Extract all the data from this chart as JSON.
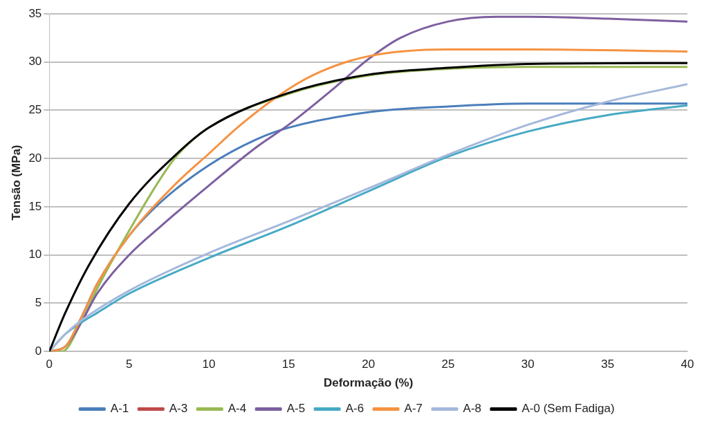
{
  "chart_data": {
    "type": "line",
    "xlabel": "Deformação (%)",
    "ylabel": "Tensão (MPa)",
    "xlim": [
      0,
      40
    ],
    "xticks": [
      0,
      5,
      10,
      15,
      20,
      25,
      30,
      35,
      40
    ],
    "ylim": [
      0,
      35
    ],
    "yticks": [
      0,
      5,
      10,
      15,
      20,
      25,
      30,
      35
    ],
    "grid": "y",
    "legend": "bottom",
    "marker": "none",
    "line_style": "solid",
    "series": [
      {
        "name": "A-1",
        "color": "#4a7ebb",
        "x": [
          0,
          1,
          2,
          3,
          5,
          7,
          10,
          13,
          15,
          20,
          25,
          30,
          40
        ],
        "values": [
          0,
          0.5,
          3.5,
          7,
          12,
          15.5,
          19.3,
          22,
          23.2,
          24.8,
          25.4,
          25.7,
          25.7
        ]
      },
      {
        "name": "A-3",
        "color": "#be4b48"
      },
      {
        "name": "A-4",
        "color": "#98b954",
        "x": [
          0,
          0.8,
          2,
          3,
          5,
          7,
          8,
          10,
          15,
          20,
          25,
          30,
          40
        ],
        "values": [
          0,
          0,
          3,
          6.5,
          12.5,
          18,
          20.3,
          23.2,
          26.7,
          28.6,
          29.3,
          29.5,
          29.5
        ]
      },
      {
        "name": "A-5",
        "color": "#7d5fa0",
        "x": [
          0,
          1,
          2,
          3,
          5,
          7,
          10,
          13,
          15,
          18,
          20,
          22,
          25,
          28,
          30,
          35,
          40
        ],
        "values": [
          0,
          0.5,
          3,
          6,
          10,
          13,
          17.2,
          21.2,
          23.5,
          27.5,
          30.3,
          32.5,
          34.2,
          34.7,
          34.7,
          34.5,
          34.2
        ]
      },
      {
        "name": "A-6",
        "color": "#46aac5",
        "x": [
          0,
          1,
          2,
          3,
          5,
          10,
          15,
          20,
          25,
          30,
          35,
          40
        ],
        "values": [
          0,
          1.8,
          3,
          4,
          6,
          9.7,
          13,
          16.6,
          20.2,
          22.8,
          24.5,
          25.5
        ]
      },
      {
        "name": "A-7",
        "color": "#f69240",
        "x": [
          0,
          1,
          2,
          3,
          5,
          8,
          10,
          12,
          15,
          17,
          20,
          25,
          30,
          40
        ],
        "values": [
          0,
          0.5,
          3.5,
          7,
          12,
          17.5,
          20.5,
          23.5,
          27.2,
          29,
          30.6,
          31.3,
          31.3,
          31.1
        ]
      },
      {
        "name": "A-8",
        "color": "#a5b8db",
        "x": [
          0,
          1,
          2,
          5,
          10,
          15,
          20,
          25,
          30,
          35,
          40
        ],
        "values": [
          0,
          1.8,
          3.2,
          6.3,
          10.2,
          13.5,
          16.9,
          20.4,
          23.5,
          25.9,
          27.7
        ]
      },
      {
        "name": "A-0 (Sem Fadiga)",
        "color": "#000000",
        "x": [
          0,
          1,
          2.5,
          5,
          8,
          10,
          15,
          20,
          25,
          30,
          40
        ],
        "values": [
          0,
          4,
          9,
          15.3,
          20.5,
          23.2,
          26.8,
          28.7,
          29.4,
          29.8,
          29.9
        ]
      }
    ]
  }
}
